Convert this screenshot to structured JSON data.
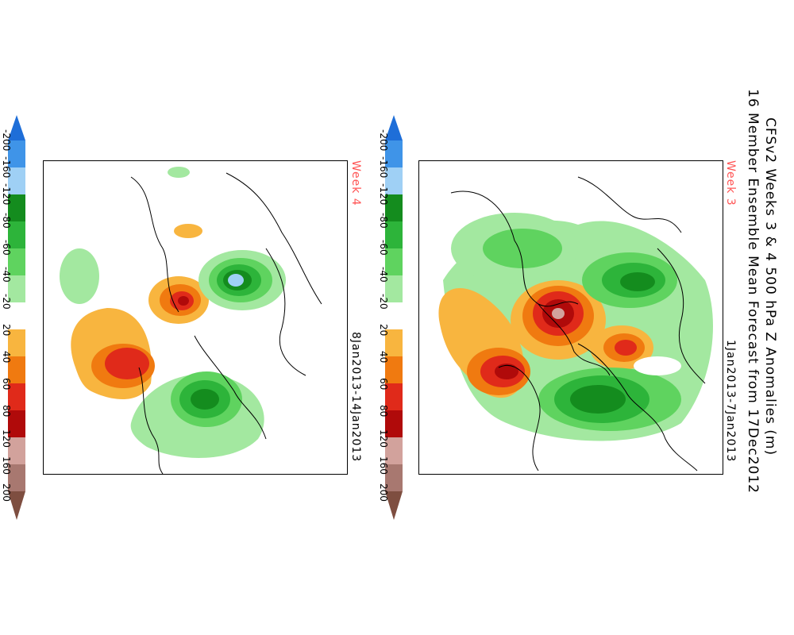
{
  "title": {
    "line1": "CFSv2 Weeks 3 & 4 500 hPa Z Anomalies (m)",
    "line2": "16 Member Ensemble Mean Forecast from 17Dec2012"
  },
  "panels": [
    {
      "week": "Week 3",
      "dates": "1Jan2013-7Jan2013"
    },
    {
      "week": "Week 4",
      "dates": "8Jan2013-14Jan2013"
    }
  ],
  "colorbar": {
    "labels": [
      "-200",
      "-160",
      "-120",
      "-80",
      "-60",
      "-40",
      "-20",
      "20",
      "40",
      "60",
      "80",
      "120",
      "160",
      "200"
    ],
    "colors": [
      "#1e6ed8",
      "#3f94e8",
      "#9fd0f5",
      "#148c1e",
      "#2db43a",
      "#5fd35f",
      "#a3e8a0",
      "#ffffff",
      "#f8b53f",
      "#f07a10",
      "#e02a1a",
      "#b00a0a",
      "#d2a29c",
      "#a87870",
      "#7e4e40"
    ]
  }
}
